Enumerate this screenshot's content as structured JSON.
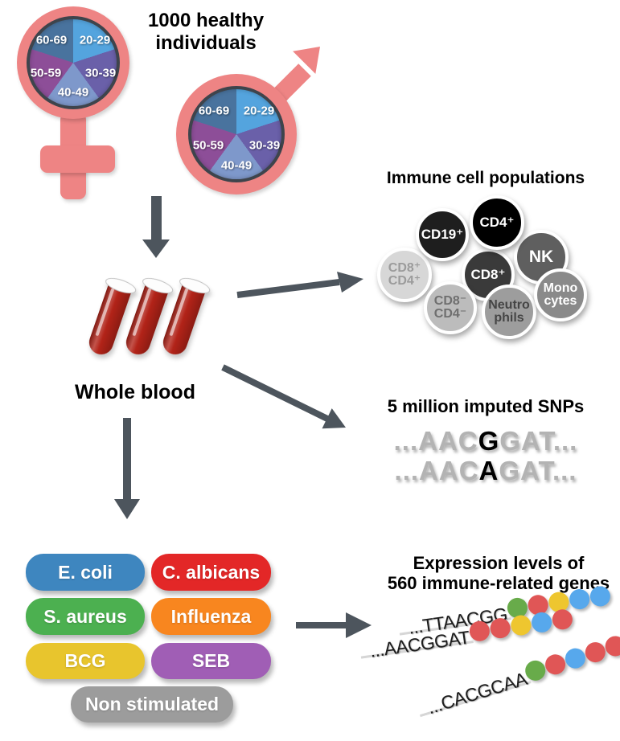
{
  "theme": {
    "symbol_pink": "#ee8484",
    "pie_outline": "#3e444c",
    "arrow_gray": "#4d555d",
    "blood_red": "#b22318"
  },
  "header": {
    "line1": "1000 healthy",
    "line2": "individuals"
  },
  "cohort": {
    "age_groups": [
      {
        "label": "20-29",
        "color": "#54a4de"
      },
      {
        "label": "30-39",
        "color": "#6a60a9"
      },
      {
        "label": "40-49",
        "color": "#7e98cb"
      },
      {
        "label": "50-59",
        "color": "#8d4e98"
      },
      {
        "label": "60-69",
        "color": "#49739e"
      }
    ]
  },
  "whole_blood": {
    "label": "Whole blood"
  },
  "immune_cells": {
    "title": "Immune cell populations",
    "cells": [
      {
        "id": "cd8pos-cd4pos",
        "line1": "CD8⁺",
        "line2": "CD4⁺",
        "bg": "#d7d7d7",
        "fg": "#9b9b9b"
      },
      {
        "id": "nk",
        "line1": "NK",
        "line2": "",
        "bg": "#5f5f5f",
        "fg": "#ffffff"
      },
      {
        "id": "cd19pos",
        "line1": "CD19⁺",
        "line2": "",
        "bg": "#1e1e1e",
        "fg": "#ffffff"
      },
      {
        "id": "cd8pos",
        "line1": "CD8⁺",
        "line2": "",
        "bg": "#3a3a3a",
        "fg": "#ffffff"
      },
      {
        "id": "cd4pos",
        "line1": "CD4⁺",
        "line2": "",
        "bg": "#000000",
        "fg": "#ffffff"
      },
      {
        "id": "cd8neg-cd4neg",
        "line1": "CD8⁻",
        "line2": "CD4⁻",
        "bg": "#bcbcbc",
        "fg": "#6f6f6f"
      },
      {
        "id": "neutrophils",
        "line1": "Neutro",
        "line2": "phils",
        "bg": "#9d9d9d",
        "fg": "#454545"
      },
      {
        "id": "monocytes",
        "line1": "Mono",
        "line2": "cytes",
        "bg": "#8a8a8a",
        "fg": "#ffffff"
      }
    ]
  },
  "snps": {
    "title": "5 million imputed SNPs",
    "alleles": [
      {
        "pre": "...AAC",
        "variant": "G",
        "post": "GAT..."
      },
      {
        "pre": "...AAC",
        "variant": "A",
        "post": "GAT..."
      }
    ]
  },
  "stimuli": [
    {
      "label": "E. coli",
      "color": "#3e86bf"
    },
    {
      "label": "C. albicans",
      "color": "#e32727"
    },
    {
      "label": "S. aureus",
      "color": "#4cb050"
    },
    {
      "label": "Influenza",
      "color": "#f8861f"
    },
    {
      "label": "BCG",
      "color": "#e8c52d"
    },
    {
      "label": "SEB",
      "color": "#a05eb5"
    },
    {
      "label": "Non stimulated",
      "color": "#9c9c9c"
    }
  ],
  "expression": {
    "title_line1": "Expression levels of",
    "title_line2": "560 immune-related genes",
    "dot_palette": {
      "green": "#68ab4a",
      "red": "#e05656",
      "yellow": "#eec62f",
      "blue": "#57a8ec"
    },
    "rows": [
      {
        "sequence": "...TTAACGG",
        "dots": [
          "green",
          "red",
          "yellow",
          "blue",
          "blue"
        ]
      },
      {
        "sequence": "...AACGGAT",
        "dots": [
          "red",
          "red",
          "yellow",
          "blue",
          "red"
        ]
      },
      {
        "sequence": "...CACGCAA",
        "dots": [
          "green",
          "red",
          "blue",
          "red",
          "red"
        ]
      }
    ]
  }
}
